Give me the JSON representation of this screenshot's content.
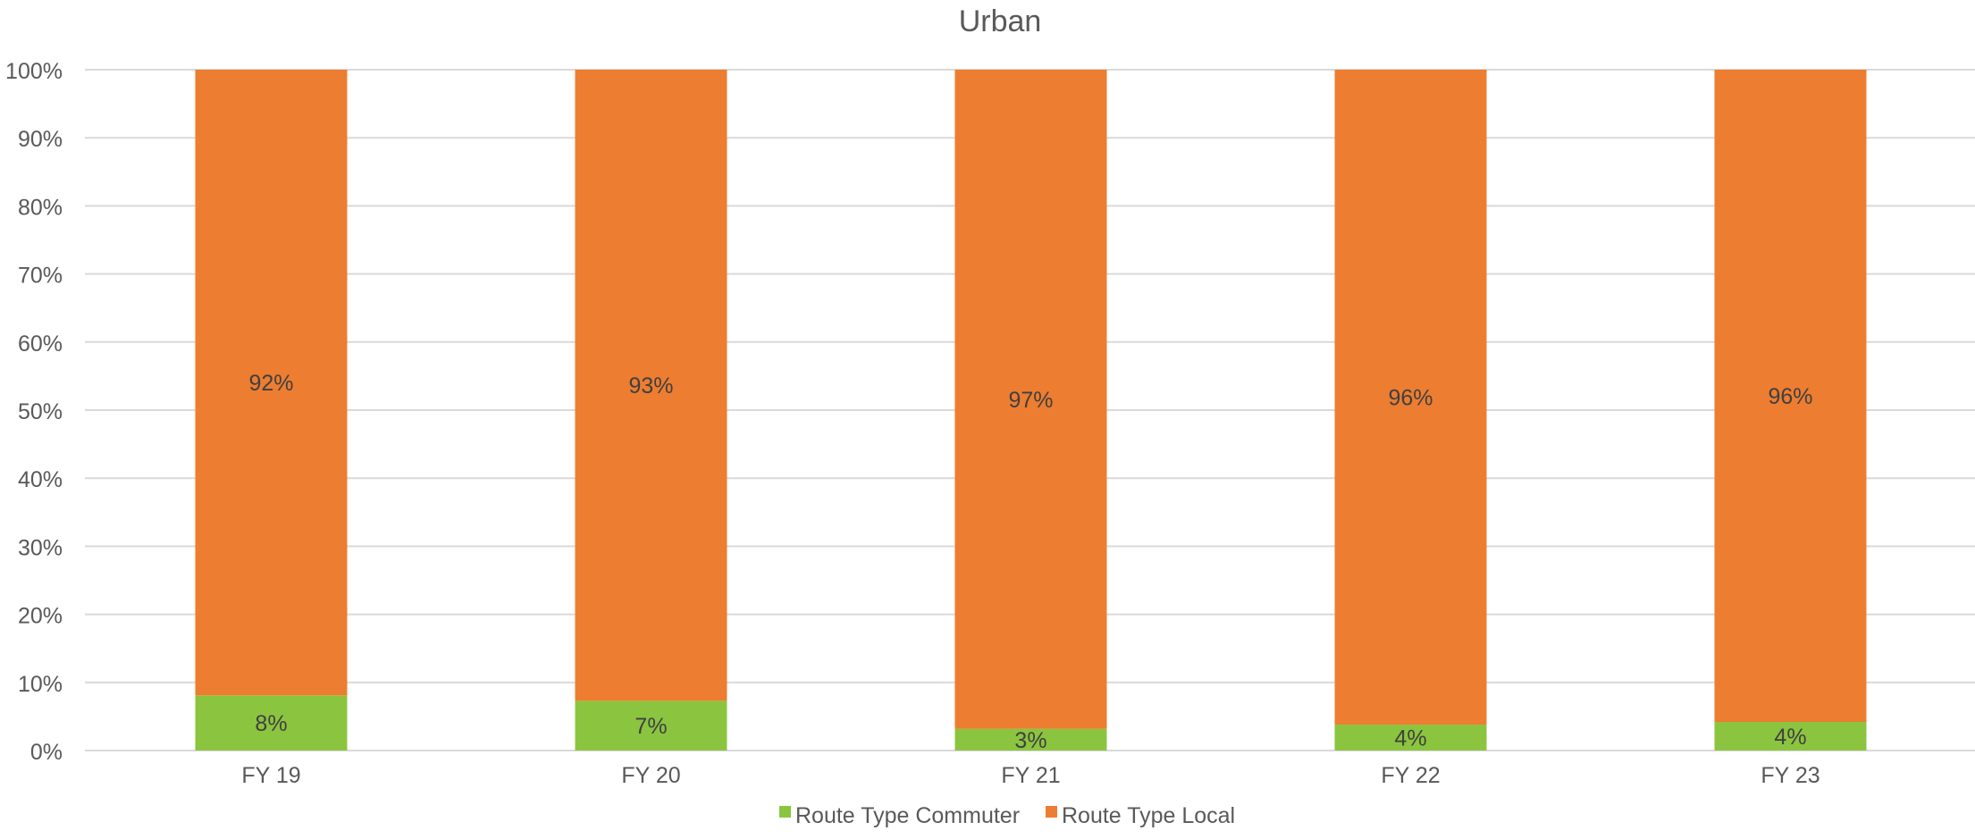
{
  "chart_data": {
    "type": "bar",
    "stacked": true,
    "percent": true,
    "title": "Urban",
    "categories": [
      "FY 19",
      "FY 20",
      "FY 21",
      "FY 22",
      "FY 23"
    ],
    "series": [
      {
        "name": "Route Type Commuter",
        "color": "#8BC53F",
        "values": [
          8.1,
          7.3,
          3.2,
          3.8,
          4.2
        ],
        "labels": [
          "8%",
          "7%",
          "3%",
          "4%",
          "4%"
        ]
      },
      {
        "name": "Route Type Local",
        "color": "#ED7D31",
        "values": [
          91.9,
          92.7,
          96.8,
          96.2,
          95.8
        ],
        "labels": [
          "92%",
          "93%",
          "97%",
          "96%",
          "96%"
        ]
      }
    ],
    "ylim": [
      0,
      100
    ],
    "yticks": [
      "0%",
      "10%",
      "20%",
      "30%",
      "40%",
      "50%",
      "60%",
      "70%",
      "80%",
      "90%",
      "100%"
    ],
    "grid": true,
    "legend": "bottom"
  }
}
